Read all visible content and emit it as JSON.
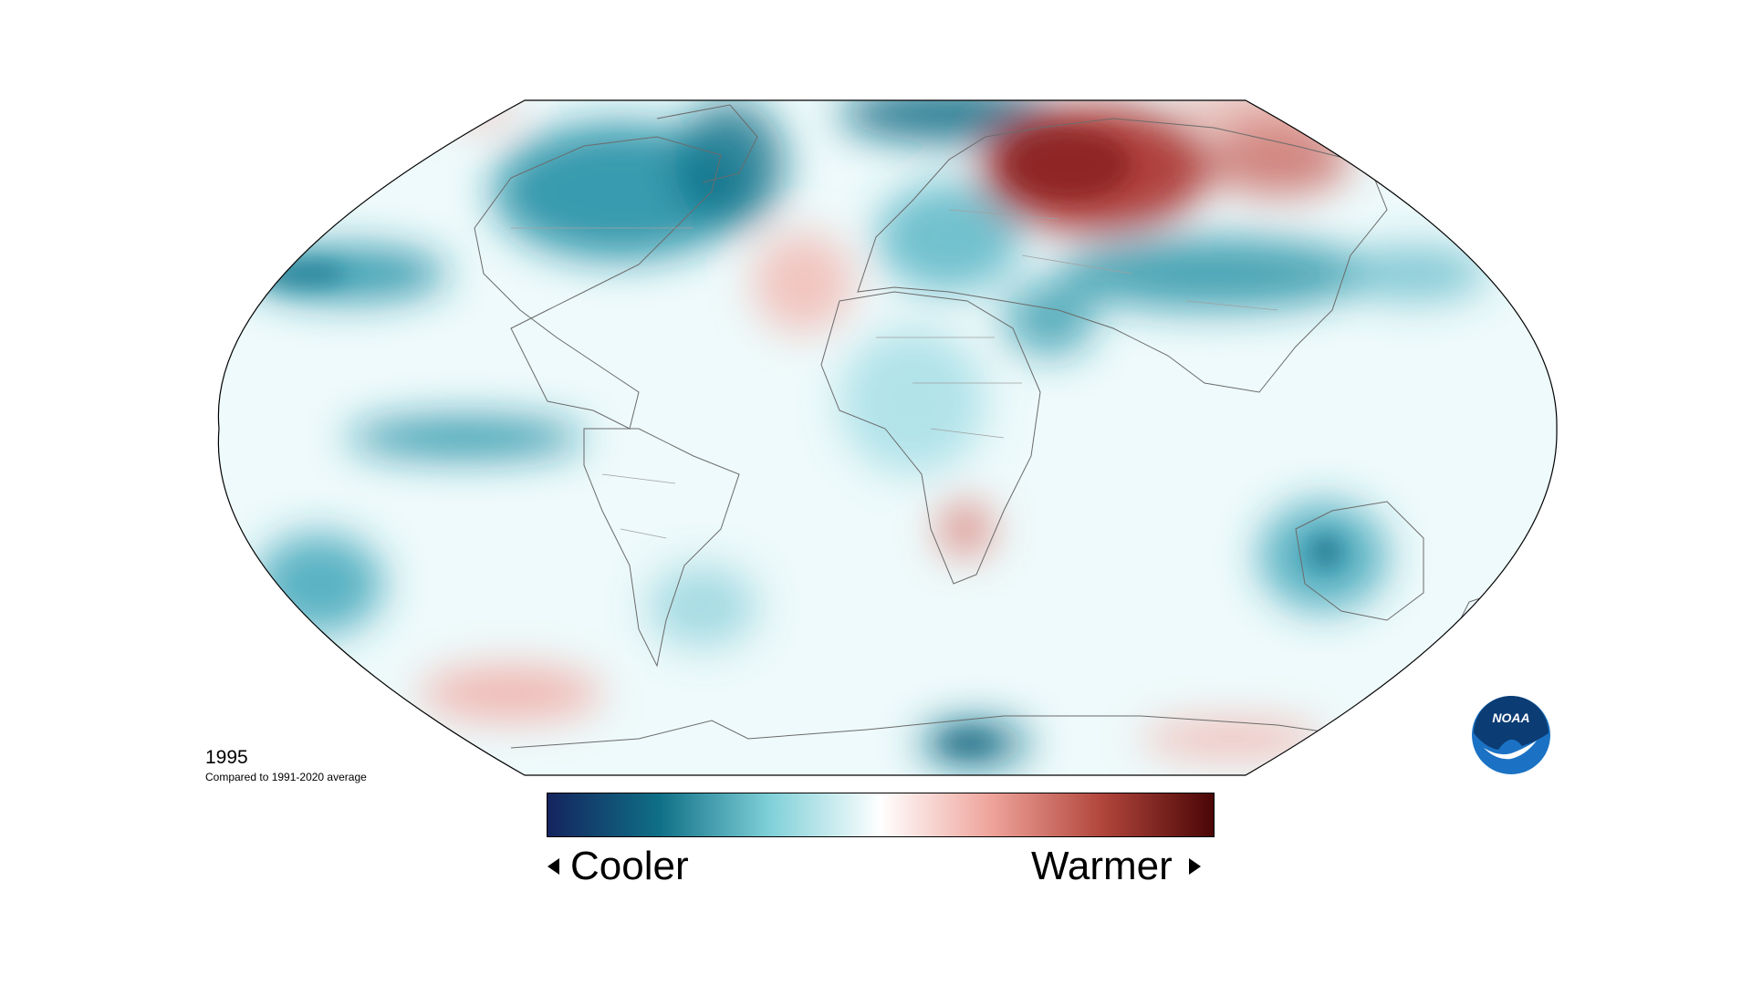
{
  "map": {
    "year": "1995",
    "comparison": "Compared to 1991-2020 average"
  },
  "legend": {
    "cooler_label": "Cooler",
    "warmer_label": "Warmer",
    "colors": [
      "#14245e",
      "#0f6f86",
      "#7fd0d8",
      "#ffffff",
      "#eea39a",
      "#b1453b",
      "#4a0606"
    ]
  },
  "logo": {
    "text": "NOAA",
    "colors": {
      "outer": "#1b72c4",
      "inner": "#0c3c74",
      "bird": "#ffffff"
    }
  },
  "colors": {
    "ocean_base": "#e6f7f9",
    "cool": "#2a9bb0",
    "cool_dark": "#0e6b85",
    "warm": "#f3b3ab",
    "warm_dark": "#b6413b",
    "coast": "#6b6b6b",
    "border": "#999999"
  }
}
